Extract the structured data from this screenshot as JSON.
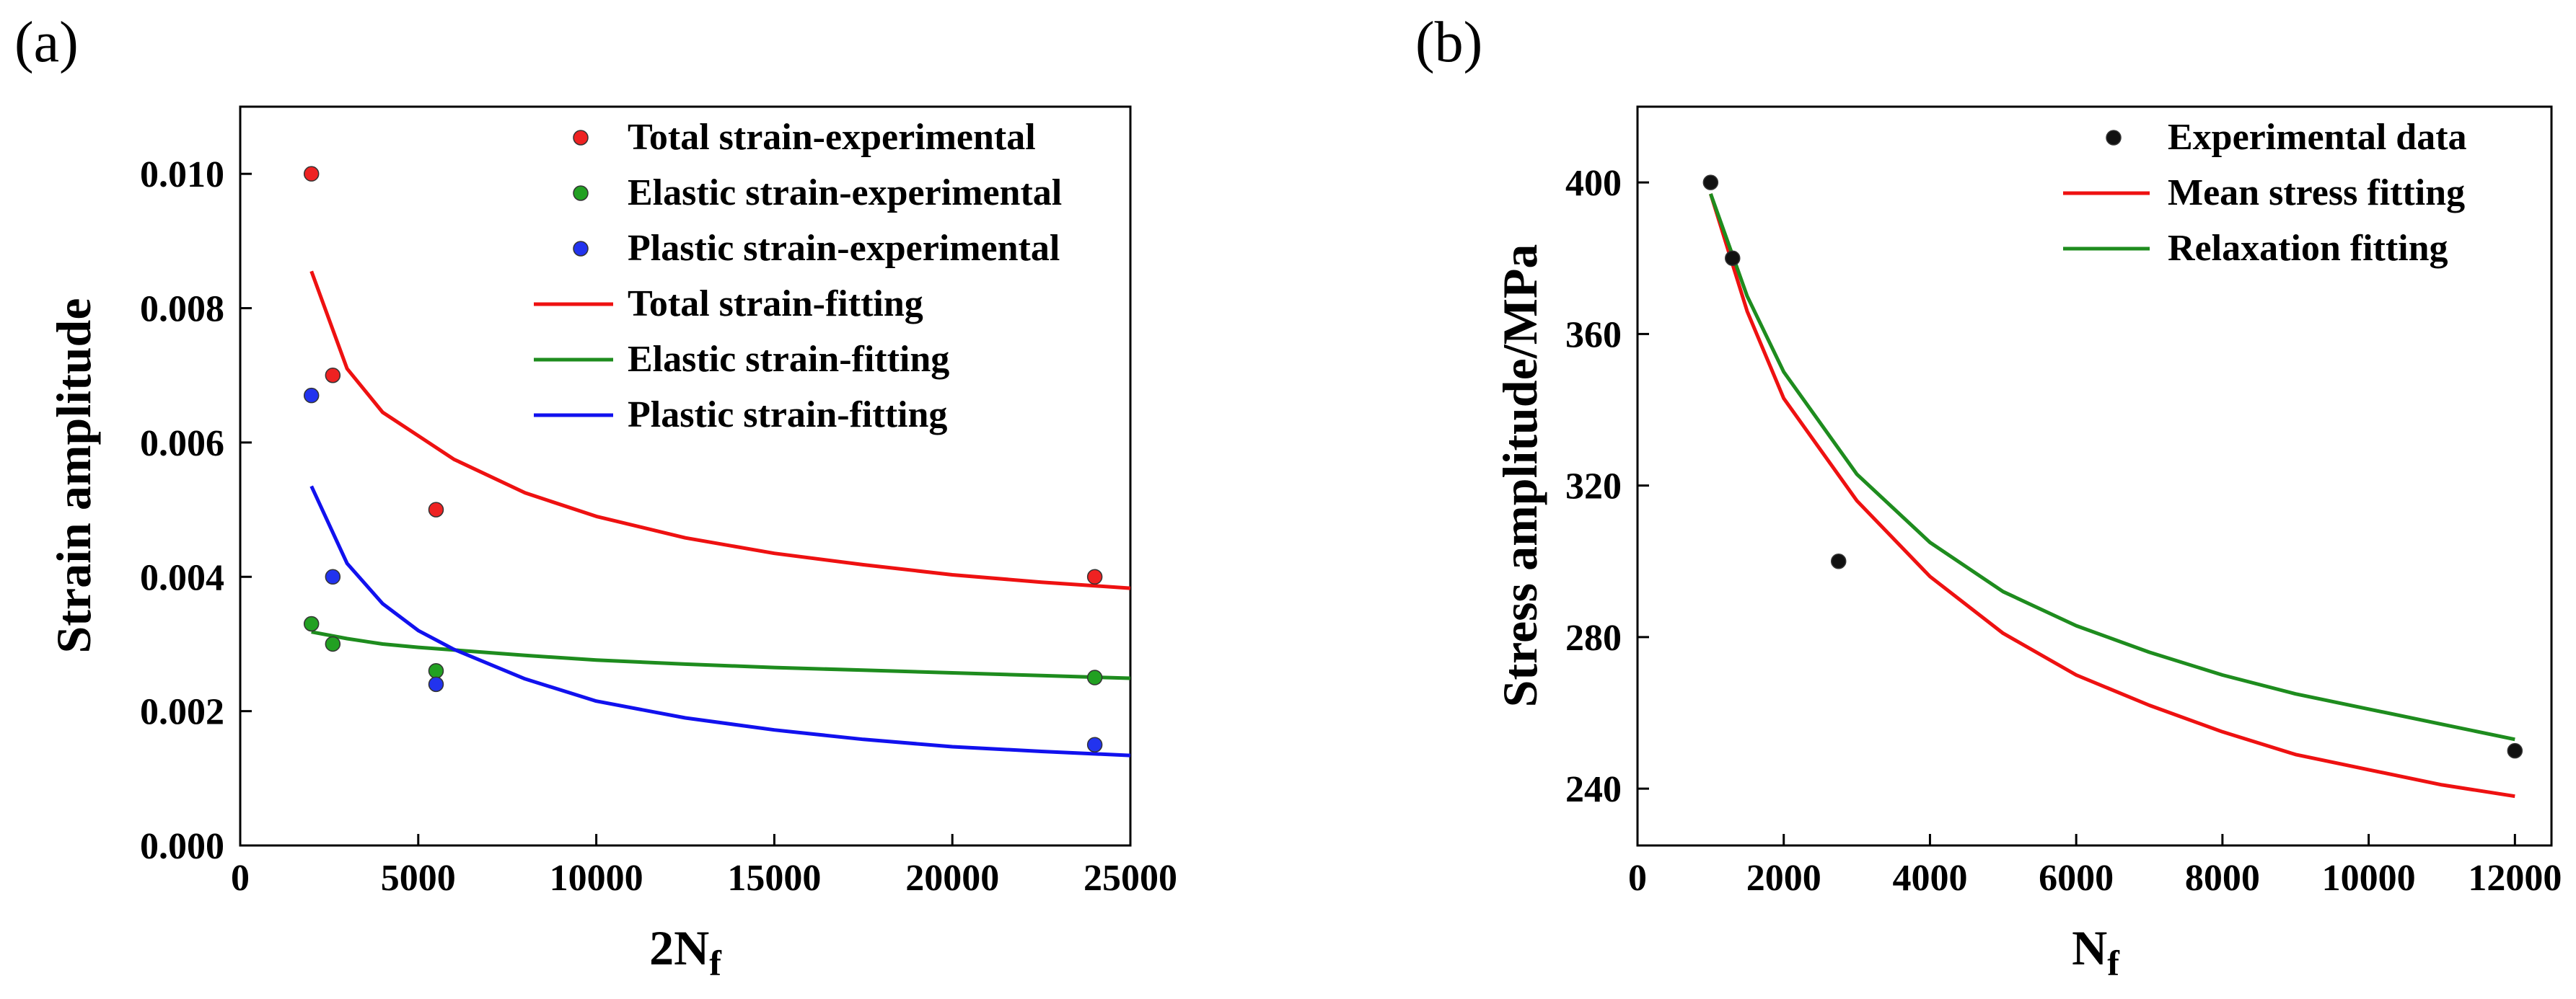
{
  "chart_data": [
    {
      "panel_label": "(a)",
      "type": "scatter",
      "title": "",
      "xlabel": "2N",
      "xlabel_sub": "f",
      "ylabel": "Strain amplitude",
      "xlim": [
        0,
        25000
      ],
      "ylim": [
        0,
        0.011
      ],
      "xticks": [
        0,
        5000,
        10000,
        15000,
        20000,
        25000
      ],
      "xtick_labels": [
        "0",
        "5000",
        "10000",
        "15000",
        "20000",
        "25000"
      ],
      "yticks": [
        0,
        0.002,
        0.004,
        0.006,
        0.008,
        0.01
      ],
      "ytick_labels": [
        "0.000",
        "0.002",
        "0.004",
        "0.006",
        "0.008",
        "0.010"
      ],
      "legend_position": "top-right",
      "series": [
        {
          "name": "Total strain-experimental",
          "kind": "scatter",
          "color": "#ee2222",
          "x": [
            2000,
            2600,
            5500,
            24000
          ],
          "y": [
            0.01,
            0.007,
            0.005,
            0.004
          ]
        },
        {
          "name": "Elastic strain-experimental",
          "kind": "scatter",
          "color": "#22a022",
          "x": [
            2000,
            2600,
            5500,
            24000
          ],
          "y": [
            0.0033,
            0.003,
            0.0026,
            0.0025
          ]
        },
        {
          "name": "Plastic strain-experimental",
          "kind": "scatter",
          "color": "#2233ee",
          "x": [
            2000,
            2600,
            5500,
            24000
          ],
          "y": [
            0.0067,
            0.004,
            0.0024,
            0.0015
          ]
        },
        {
          "name": "Total strain-fitting",
          "kind": "line",
          "color": "#ee1111",
          "x": [
            2000,
            3000,
            4000,
            5000,
            6000,
            8000,
            10000,
            12500,
            15000,
            17500,
            20000,
            22500,
            25000
          ],
          "y": [
            0.00855,
            0.0071,
            0.00645,
            0.0061,
            0.00575,
            0.00525,
            0.0049,
            0.00458,
            0.00435,
            0.00418,
            0.00403,
            0.00392,
            0.00383
          ]
        },
        {
          "name": "Elastic strain-fitting",
          "kind": "line",
          "color": "#1e8c1e",
          "x": [
            2000,
            3000,
            4000,
            5000,
            6000,
            8000,
            10000,
            12500,
            15000,
            17500,
            20000,
            22500,
            25000
          ],
          "y": [
            0.00318,
            0.00308,
            0.003,
            0.00295,
            0.00291,
            0.00283,
            0.00276,
            0.0027,
            0.00265,
            0.00261,
            0.00257,
            0.00253,
            0.00249
          ]
        },
        {
          "name": "Plastic strain-fitting",
          "kind": "line",
          "color": "#1111ee",
          "x": [
            2000,
            3000,
            4000,
            5000,
            6000,
            8000,
            10000,
            12500,
            15000,
            17500,
            20000,
            22500,
            25000
          ],
          "y": [
            0.00535,
            0.0042,
            0.0036,
            0.0032,
            0.00292,
            0.00248,
            0.00215,
            0.0019,
            0.00172,
            0.00158,
            0.00147,
            0.0014,
            0.00134
          ]
        }
      ]
    },
    {
      "panel_label": "(b)",
      "type": "scatter",
      "title": "",
      "xlabel": "N",
      "xlabel_sub": "f",
      "ylabel": "Stress amplitude/MPa",
      "xlim": [
        0,
        12500
      ],
      "ylim": [
        225,
        420
      ],
      "xticks": [
        0,
        2000,
        4000,
        6000,
        8000,
        10000,
        12000
      ],
      "xtick_labels": [
        "0",
        "2000",
        "4000",
        "6000",
        "8000",
        "10000",
        "12000"
      ],
      "yticks": [
        240,
        280,
        320,
        360,
        400
      ],
      "ytick_labels": [
        "240",
        "280",
        "320",
        "360",
        "400"
      ],
      "legend_position": "top-right",
      "series": [
        {
          "name": "Experimental data",
          "kind": "scatter",
          "color": "#111111",
          "x": [
            1000,
            1300,
            2750,
            12000
          ],
          "y": [
            400,
            380,
            300,
            250
          ]
        },
        {
          "name": "Mean stress fitting",
          "kind": "line",
          "color": "#ee1111",
          "x": [
            1000,
            1500,
            2000,
            3000,
            4000,
            5000,
            6000,
            7000,
            8000,
            9000,
            10000,
            11000,
            12000
          ],
          "y": [
            397,
            366,
            343,
            316,
            296,
            281,
            270,
            262,
            255,
            249,
            245,
            241,
            238
          ]
        },
        {
          "name": "Relaxation fitting",
          "kind": "line",
          "color": "#1e8c1e",
          "x": [
            1000,
            1500,
            2000,
            3000,
            4000,
            5000,
            6000,
            7000,
            8000,
            9000,
            10000,
            11000,
            12000
          ],
          "y": [
            397,
            370,
            350,
            323,
            305,
            292,
            283,
            276,
            270,
            265,
            261,
            257,
            253
          ]
        }
      ]
    }
  ]
}
